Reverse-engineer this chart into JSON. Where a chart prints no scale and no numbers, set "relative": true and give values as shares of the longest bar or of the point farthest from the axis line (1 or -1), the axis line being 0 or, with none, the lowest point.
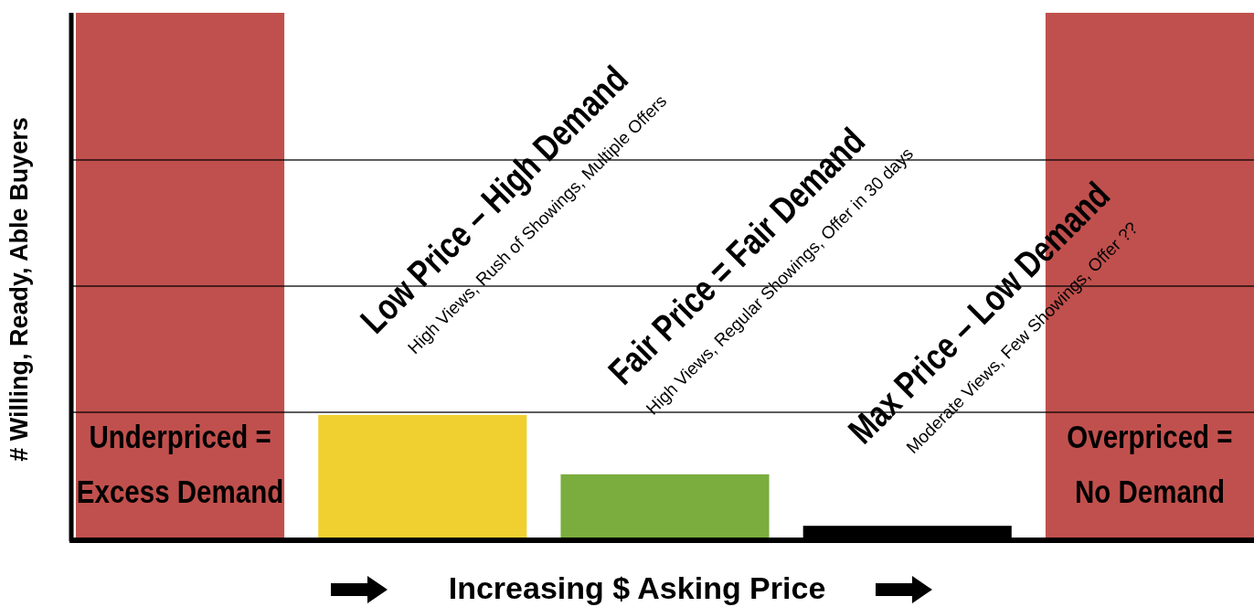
{
  "chart_data": {
    "type": "bar",
    "relative": true,
    "xlabel": "Increasing $ Asking Price",
    "ylabel": "# Willing, Ready, Able Buyers",
    "categories": [
      null,
      null,
      null,
      null,
      null
    ],
    "values": [
      1,
      0.235,
      0.122,
      0.024,
      1
    ],
    "colors": [
      "#c0504d",
      "#f0d030",
      "#7aad3d",
      "#000000",
      "#c0504d"
    ],
    "ref_lines": [
      {
        "axis": "y",
        "value": 0.24,
        "color": "#000000"
      },
      {
        "axis": "y",
        "value": 0.48,
        "color": "#000000"
      },
      {
        "axis": "y",
        "value": 0.72,
        "color": "#000000"
      }
    ],
    "annotations": [
      "Underpriced = Excess Demand",
      "Low Price – High Demand",
      "High Views, Rush of Showings, Multiple Offers",
      "Fair Price = Fair Demand",
      "High Views, Regular Showings, Offer in 30 days",
      "Max Price – Low Demand",
      "Moderate Views, Few Showings, Offer ??",
      "Overpriced = No Demand"
    ]
  }
}
